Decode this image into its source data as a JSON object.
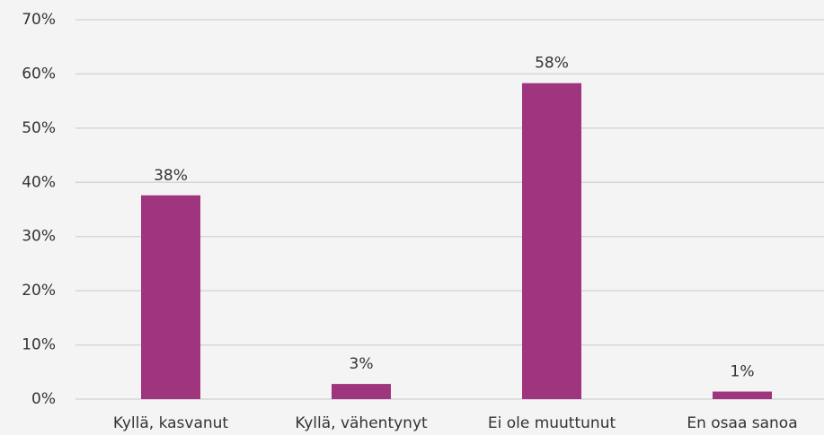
{
  "chart_data": {
    "type": "bar",
    "categories": [
      "Kyllä, kasvanut",
      "Kyllä, vähentynyt",
      "Ei ole muuttunut",
      "En osaa sanoa"
    ],
    "values": [
      37.6,
      2.8,
      58.3,
      1.4
    ],
    "value_labels": [
      "38%",
      "3%",
      "58%",
      "1%"
    ],
    "color": "#a0357f",
    "ylim": [
      0,
      70
    ],
    "yticks": [
      {
        "value": 0,
        "label": "0%"
      },
      {
        "value": 10,
        "label": "10%"
      },
      {
        "value": 20,
        "label": "20%"
      },
      {
        "value": 30,
        "label": "30%"
      },
      {
        "value": 40,
        "label": "40%"
      },
      {
        "value": 50,
        "label": "50%"
      },
      {
        "value": 60,
        "label": "60%"
      },
      {
        "value": 70,
        "label": "70%"
      }
    ],
    "grid": true
  }
}
